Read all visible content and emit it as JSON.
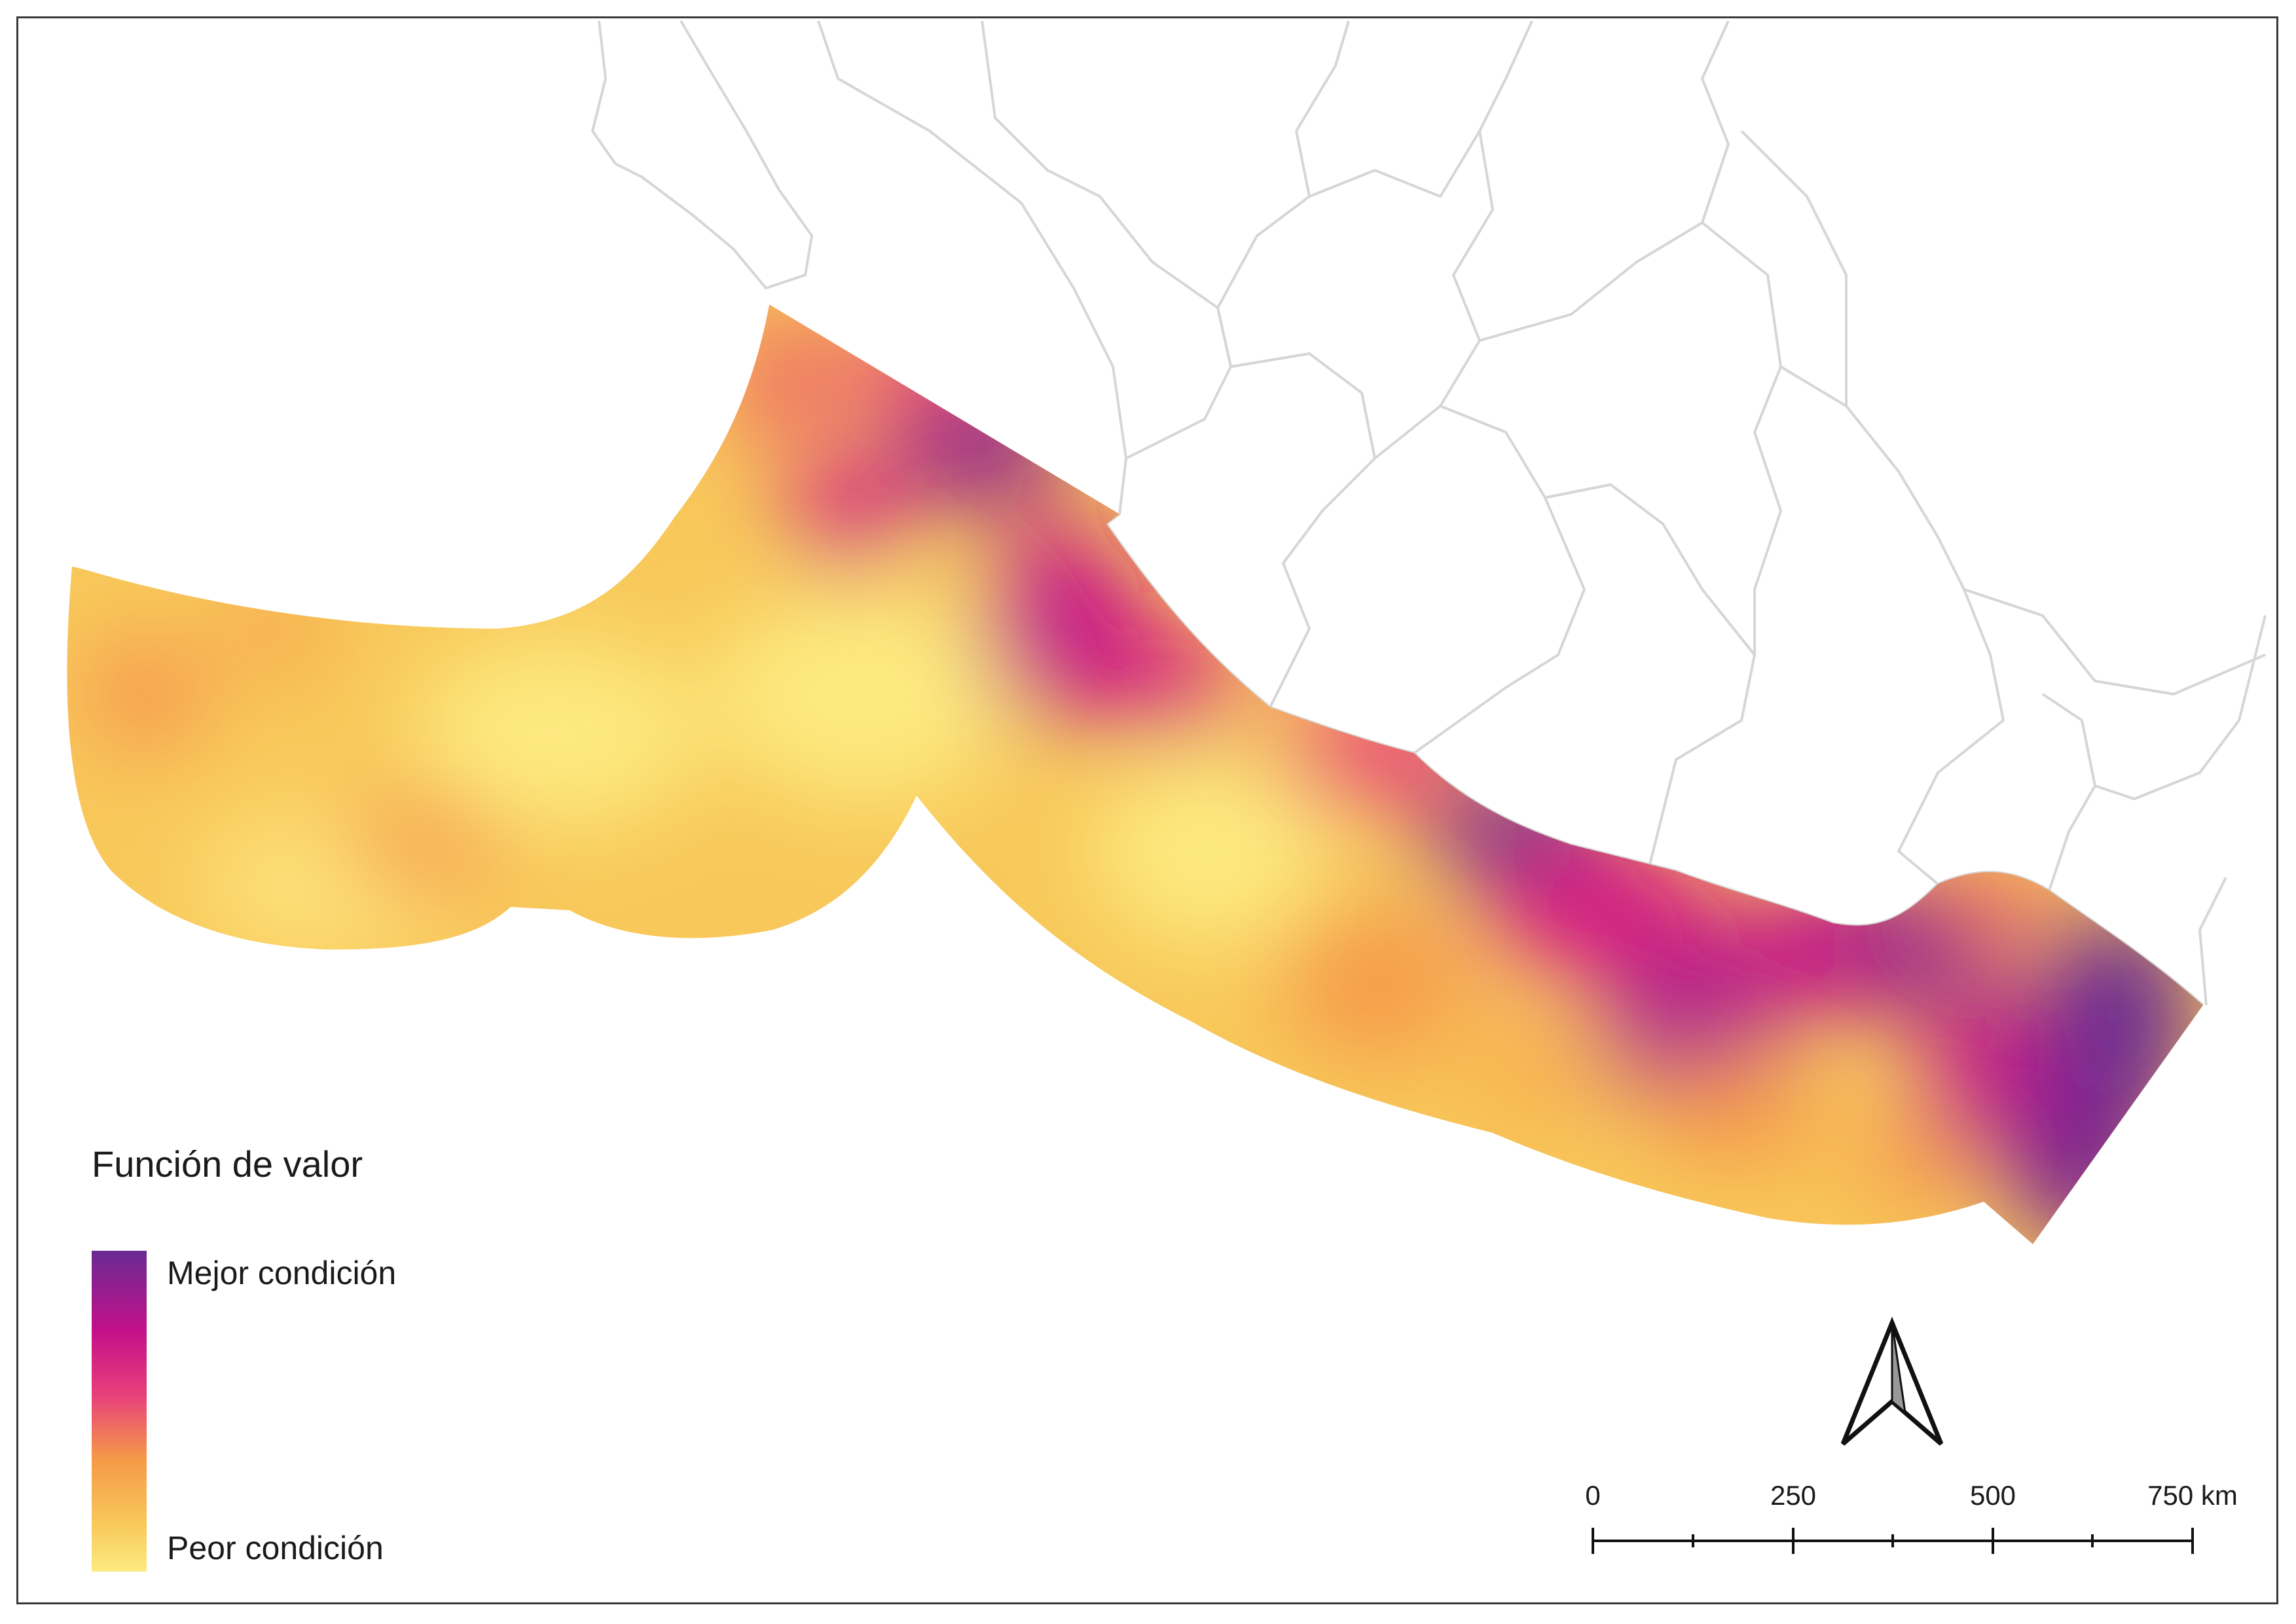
{
  "legend": {
    "title": "Función de valor",
    "high_label": "Mejor condición",
    "low_label": "Peor condición",
    "ramp_colors": [
      "#6a2a93",
      "#c4108a",
      "#e8407a",
      "#f59a48",
      "#f8c85a",
      "#fdeb80"
    ]
  },
  "scale_bar": {
    "labels": [
      "0",
      "250",
      "500",
      "750 km"
    ]
  },
  "north_arrow": {
    "icon": "north-arrow-icon"
  },
  "colors": {
    "best": "#6a2a93",
    "high": "#c4108a",
    "mid_high": "#e8407a",
    "mid": "#f59a48",
    "low": "#f8c85a",
    "worst": "#fdeb80",
    "land_border": "#d8d8d8"
  }
}
